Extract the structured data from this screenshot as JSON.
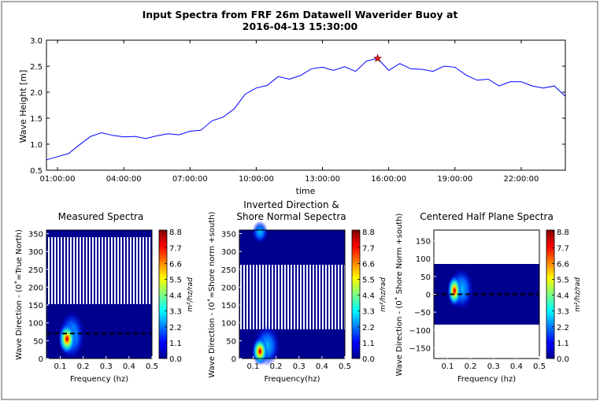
{
  "figure": {
    "title_line1": "Input Spectra from FRF 26m Datawell Waverider Buoy at",
    "title_line2": "2016-04-13 15:30:00"
  },
  "chart_data": [
    {
      "type": "line",
      "xlabel": "time",
      "ylabel": "Wave Height [m]",
      "xlim_hours": [
        0.5,
        24.0
      ],
      "ylim": [
        0.5,
        3.0
      ],
      "xticks": [
        "01:00:00",
        "04:00:00",
        "07:00:00",
        "10:00:00",
        "13:00:00",
        "16:00:00",
        "19:00:00",
        "22:00:00"
      ],
      "yticks": [
        "0.5",
        "1.0",
        "1.5",
        "2.0",
        "2.5",
        "3.0"
      ],
      "line_color": "#0000ff",
      "marker": {
        "x_hours": 15.5,
        "y": 2.65,
        "symbol": "star",
        "color": "#d62728"
      },
      "x_hours": [
        0.5,
        1.0,
        1.5,
        2.0,
        2.5,
        3.0,
        3.5,
        4.0,
        4.5,
        5.0,
        5.5,
        6.0,
        6.5,
        7.0,
        7.5,
        8.0,
        8.5,
        9.0,
        9.5,
        10.0,
        10.5,
        11.0,
        11.5,
        12.0,
        12.5,
        13.0,
        13.5,
        14.0,
        14.5,
        15.0,
        15.5,
        16.0,
        16.5,
        17.0,
        17.5,
        18.0,
        18.5,
        19.0,
        19.5,
        20.0,
        20.5,
        21.0,
        21.5,
        22.0,
        22.5,
        23.0,
        23.5,
        24.0
      ],
      "y": [
        0.7,
        0.76,
        0.82,
        0.99,
        1.15,
        1.22,
        1.17,
        1.14,
        1.15,
        1.11,
        1.16,
        1.2,
        1.18,
        1.25,
        1.27,
        1.45,
        1.52,
        1.68,
        1.96,
        2.08,
        2.13,
        2.3,
        2.25,
        2.32,
        2.45,
        2.48,
        2.42,
        2.49,
        2.4,
        2.6,
        2.65,
        2.42,
        2.55,
        2.45,
        2.44,
        2.4,
        2.5,
        2.48,
        2.33,
        2.23,
        2.25,
        2.12,
        2.2,
        2.2,
        2.12,
        2.08,
        2.12,
        1.92
      ]
    },
    {
      "type": "heatmap",
      "title": "Measured Spectra",
      "xlabel": "Frequency (hz)",
      "ylabel": "Wave Direction - (0˚=True North)",
      "xlim": [
        0.04,
        0.5
      ],
      "ylim": [
        0,
        360
      ],
      "xticks": [
        "0.1",
        "0.2",
        "0.3",
        "0.4",
        "0.5"
      ],
      "yticks": [
        "0",
        "50",
        "100",
        "150",
        "200",
        "250",
        "300",
        "350"
      ],
      "peak": {
        "freq": 0.13,
        "dir": 55
      },
      "shore_normal_line_dir": 70,
      "colorbar_label": "m²/hz/rad",
      "colorbar_ticks": [
        "0.0",
        "1.1",
        "2.2",
        "3.3",
        "4.4",
        "5.5",
        "6.6",
        "7.7",
        "8.8"
      ]
    },
    {
      "type": "heatmap",
      "title_line1": "Inverted Direction &",
      "title_line2": "Shore Normal Sepectra",
      "xlabel": "Frequency(hz)",
      "ylabel": "Wave Direction - (0˚=Shore norm +south)",
      "xlim": [
        0.04,
        0.5
      ],
      "ylim": [
        0,
        360
      ],
      "xticks": [
        "0.1",
        "0.2",
        "0.3",
        "0.4",
        "0.5"
      ],
      "yticks": [
        "0",
        "50",
        "100",
        "150",
        "200",
        "250",
        "300",
        "350"
      ],
      "peak": {
        "freq": 0.13,
        "dir": 20
      },
      "colorbar_label": "m²/hz/rad",
      "colorbar_ticks": [
        "0.0",
        "1.1",
        "2.2",
        "3.3",
        "4.4",
        "5.5",
        "6.6",
        "7.7",
        "8.8"
      ]
    },
    {
      "type": "heatmap",
      "title": "Centered Half Plane Spectra",
      "xlabel": "Frequency (hz)",
      "ylabel": "Wave Direction - (0˚ Shore Norm +south)",
      "xlim": [
        0.04,
        0.5
      ],
      "ylim": [
        -180,
        180
      ],
      "data_band": [
        -85,
        85
      ],
      "xticks": [
        "0.1",
        "0.2",
        "0.3",
        "0.4",
        "0.5"
      ],
      "yticks": [
        "−150",
        "−100",
        "−50",
        "0",
        "50",
        "100",
        "150"
      ],
      "peak": {
        "freq": 0.13,
        "dir": 10
      },
      "shore_normal_line_dir": 0,
      "colorbar_label": "m²/hz/rad",
      "colorbar_ticks": [
        "0.0",
        "1.1",
        "2.2",
        "3.3",
        "4.4",
        "5.5",
        "6.6",
        "7.7",
        "8.8"
      ]
    }
  ]
}
